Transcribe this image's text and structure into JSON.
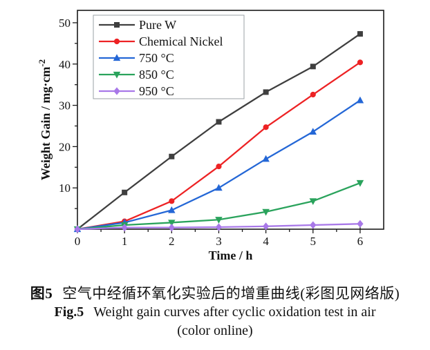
{
  "chart_data": {
    "type": "line",
    "x": [
      0,
      1,
      2,
      3,
      4,
      5,
      6
    ],
    "series": [
      {
        "name": "Pure W",
        "color": "#3f3f3f",
        "marker": "square",
        "values": [
          0,
          8.9,
          17.6,
          26.0,
          33.2,
          39.4,
          47.3
        ]
      },
      {
        "name": "Chemical Nickel",
        "color": "#ed2224",
        "marker": "circle",
        "values": [
          0,
          1.9,
          6.8,
          15.2,
          24.7,
          32.6,
          40.4
        ]
      },
      {
        "name": "750 °C",
        "color": "#2467d6",
        "marker": "triangle-up",
        "values": [
          0,
          1.6,
          4.6,
          10.0,
          17.0,
          23.6,
          31.2
        ]
      },
      {
        "name": "850 °C",
        "color": "#2aa35c",
        "marker": "triangle-down",
        "values": [
          0,
          1.0,
          1.6,
          2.3,
          4.2,
          6.8,
          11.2
        ]
      },
      {
        "name": "950 °C",
        "color": "#a878e8",
        "marker": "diamond",
        "values": [
          0,
          0.4,
          0.4,
          0.5,
          0.7,
          1.0,
          1.3
        ]
      }
    ],
    "title": "",
    "xlabel": "Time / h",
    "ylabel": "Weight Gain / mg·cm⁻²",
    "ylabel_parts": {
      "base": "Weight Gain / mg·cm",
      "sup": "-2"
    },
    "xlim": [
      0,
      6.5
    ],
    "ylim": [
      0,
      53
    ],
    "xticks": [
      0,
      1,
      2,
      3,
      4,
      5,
      6
    ],
    "xticklabels": [
      "0",
      "1",
      "2",
      "3",
      "4",
      "5",
      "6"
    ],
    "yticks": [
      10,
      20,
      30,
      40,
      50
    ],
    "yticklabels": [
      "10",
      "20",
      "30",
      "40",
      "50"
    ],
    "x_minor_step": 0.5,
    "y_minor_step": 5,
    "grid": false,
    "legend_position": "top-left",
    "axis_color": "#1a1a1a"
  },
  "caption": {
    "zh_label": "图5",
    "zh_text": "空气中经循环氧化实验后的增重曲线(彩图见网络版)",
    "en_label": "Fig.5",
    "en_text": "Weight gain curves after cyclic oxidation test in air",
    "en_note": "(color online)"
  }
}
